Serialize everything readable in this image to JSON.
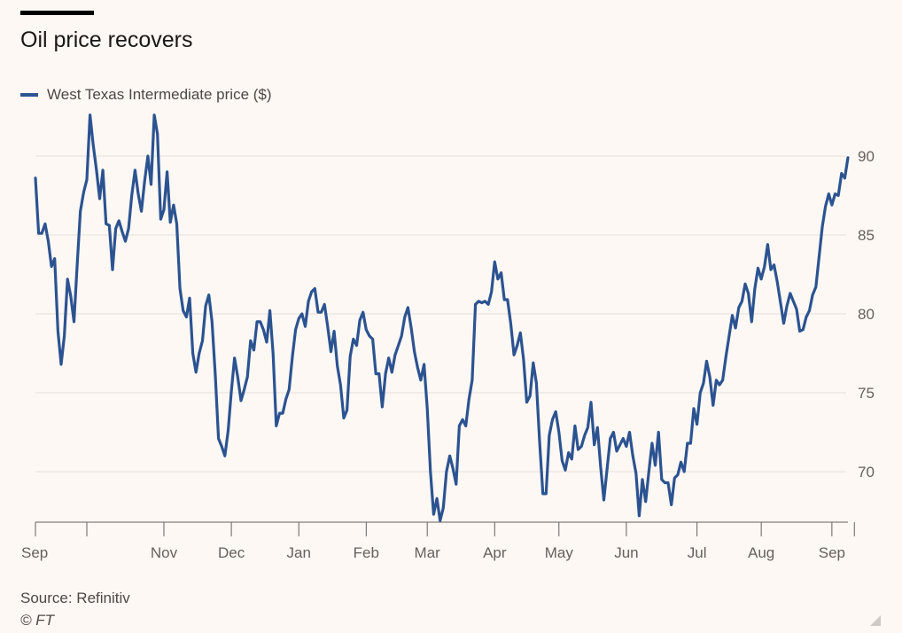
{
  "chart_data": {
    "type": "line",
    "title": "Oil price recovers",
    "xlabel": "",
    "ylabel": "",
    "ylim": [
      66.5,
      93
    ],
    "yticks": [
      70,
      75,
      80,
      85,
      90
    ],
    "grid": true,
    "legend_position": "top-left",
    "x_tick_labels": [
      "Sep",
      "Nov",
      "Dec",
      "Jan",
      "Feb",
      "Mar",
      "Apr",
      "May",
      "Jun",
      "Jul",
      "Aug",
      "Sep"
    ],
    "x_tick_label_index": [
      0,
      40,
      61,
      82,
      103,
      122,
      143,
      163,
      184,
      206,
      226,
      248
    ],
    "x_tick_mark_index": [
      0,
      16,
      40,
      61,
      82,
      103,
      122,
      143,
      163,
      184,
      206,
      226,
      248,
      255
    ],
    "colors": {
      "series": "#2c5391",
      "grid": "#e6e1dd",
      "axis": "#66605c",
      "background": "#fdf8f4"
    },
    "series": [
      {
        "name": "West Texas Intermediate price ($)",
        "values": [
          88.6,
          85.1,
          85.1,
          85.7,
          84.6,
          83.0,
          83.5,
          78.9,
          76.8,
          78.6,
          82.2,
          81.1,
          79.5,
          83.1,
          86.5,
          87.7,
          88.5,
          92.6,
          90.7,
          89.1,
          87.3,
          89.1,
          85.7,
          85.6,
          82.8,
          85.4,
          85.9,
          85.2,
          84.6,
          85.4,
          87.5,
          89.1,
          87.6,
          86.5,
          88.4,
          90.0,
          88.2,
          92.6,
          91.4,
          86.0,
          86.6,
          89.0,
          85.8,
          86.9,
          85.7,
          81.6,
          80.2,
          79.8,
          81.0,
          77.5,
          76.3,
          77.5,
          78.3,
          80.5,
          81.2,
          79.5,
          76.1,
          72.1,
          71.6,
          71.0,
          72.6,
          75.1,
          77.2,
          76.0,
          74.5,
          75.2,
          76.0,
          78.3,
          77.7,
          79.5,
          79.5,
          79.0,
          78.2,
          80.2,
          77.5,
          72.9,
          73.7,
          73.7,
          74.6,
          75.2,
          77.3,
          79.0,
          79.7,
          80.0,
          79.2,
          80.8,
          81.4,
          81.6,
          80.1,
          80.1,
          80.6,
          79.2,
          77.6,
          78.9,
          76.7,
          75.5,
          73.4,
          73.9,
          77.3,
          78.4,
          78.0,
          79.6,
          80.1,
          79.0,
          78.6,
          78.4,
          76.2,
          76.2,
          74.1,
          76.2,
          77.2,
          76.3,
          77.4,
          78.0,
          78.6,
          79.8,
          80.4,
          79.1,
          77.6,
          76.6,
          75.8,
          76.8,
          74.0,
          70.0,
          67.3,
          68.3,
          66.9,
          67.7,
          70.0,
          71.0,
          70.2,
          69.2,
          72.9,
          73.3,
          72.9,
          74.6,
          75.8,
          80.6,
          80.8,
          80.7,
          80.8,
          80.6,
          81.4,
          83.3,
          82.2,
          82.6,
          80.9,
          80.9,
          79.4,
          77.4,
          78.0,
          78.8,
          77.1,
          74.4,
          74.8,
          76.9,
          75.6,
          71.9,
          68.6,
          68.6,
          72.3,
          73.3,
          73.8,
          72.5,
          70.7,
          70.1,
          71.2,
          70.8,
          72.9,
          71.4,
          71.6,
          72.3,
          72.8,
          74.4,
          71.7,
          72.8,
          70.3,
          68.2,
          70.2,
          72.1,
          72.5,
          71.3,
          71.7,
          72.1,
          71.6,
          72.5,
          71.0,
          69.9,
          67.2,
          69.5,
          68.1,
          70.0,
          71.8,
          70.4,
          72.5,
          69.5,
          69.3,
          69.3,
          67.9,
          69.6,
          69.8,
          70.6,
          70.0,
          71.8,
          71.8,
          74.0,
          73.0,
          75.0,
          75.6,
          77.0,
          76.0,
          74.2,
          75.8,
          75.5,
          75.8,
          77.3,
          78.6,
          79.9,
          79.1,
          80.4,
          80.8,
          81.9,
          81.3,
          79.5,
          81.6,
          82.9,
          82.2,
          83.0,
          84.4,
          82.8,
          83.1,
          82.0,
          80.7,
          79.4,
          80.5,
          81.3,
          80.8,
          80.3,
          78.9,
          79.0,
          79.8,
          80.2,
          81.2,
          81.7,
          83.6,
          85.5,
          86.8,
          87.6,
          86.9,
          87.6,
          87.5,
          88.9,
          88.6,
          89.9
        ]
      }
    ]
  },
  "footer": {
    "source": "Source: Refinitiv",
    "copyright": "© FT"
  }
}
